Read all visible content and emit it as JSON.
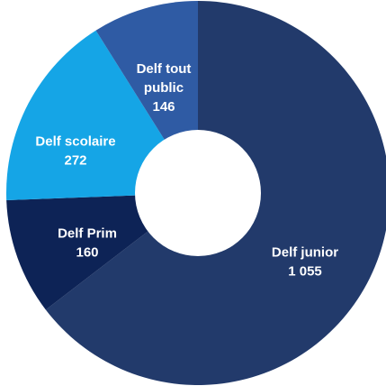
{
  "chart_data": {
    "type": "pie",
    "style": "donut",
    "title": "",
    "slices": [
      {
        "name": "Delf junior",
        "value": 1055,
        "value_label": "1 055",
        "color": "#223a6b"
      },
      {
        "name": "Delf Prim",
        "value": 160,
        "value_label": "160",
        "color": "#0d2356"
      },
      {
        "name": "Delf scolaire",
        "value": 272,
        "value_label": "272",
        "color": "#15a5e6"
      },
      {
        "name": "Delf tout public",
        "value": 146,
        "value_label": "146",
        "color": "#2f5ba4"
      }
    ],
    "label_lines": [
      [
        "Delf junior",
        "1 055"
      ],
      [
        "Delf Prim",
        "160"
      ],
      [
        "Delf scolaire",
        "272"
      ],
      [
        "Delf tout",
        "public",
        "146"
      ]
    ],
    "legend": "none"
  }
}
